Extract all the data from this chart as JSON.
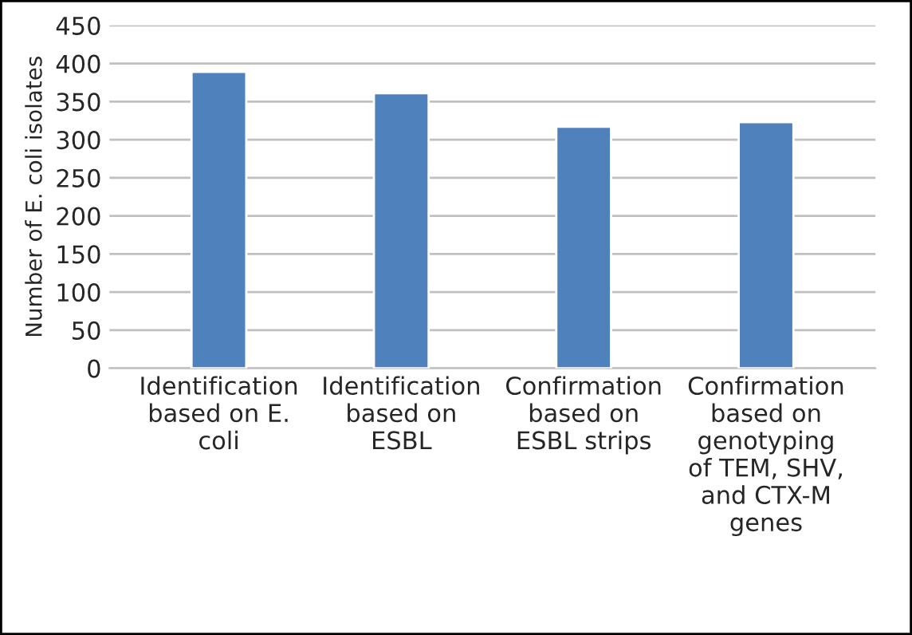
{
  "chart_data": {
    "type": "bar",
    "ylabel": "Number of E. coli isolates",
    "categories": [
      "Identification based on E. coli",
      "Identification based on ESBL",
      "Confirmation based on ESBL strips",
      "Confirmation based on genotyping of TEM, SHV, and CTX-M genes"
    ],
    "values": [
      389,
      361,
      317,
      323
    ],
    "color": "#4f81bd",
    "ylim": [
      0,
      450
    ],
    "yticks": [
      0,
      50,
      100,
      150,
      200,
      250,
      300,
      350,
      400,
      450
    ],
    "grid": "y",
    "legend": false
  }
}
